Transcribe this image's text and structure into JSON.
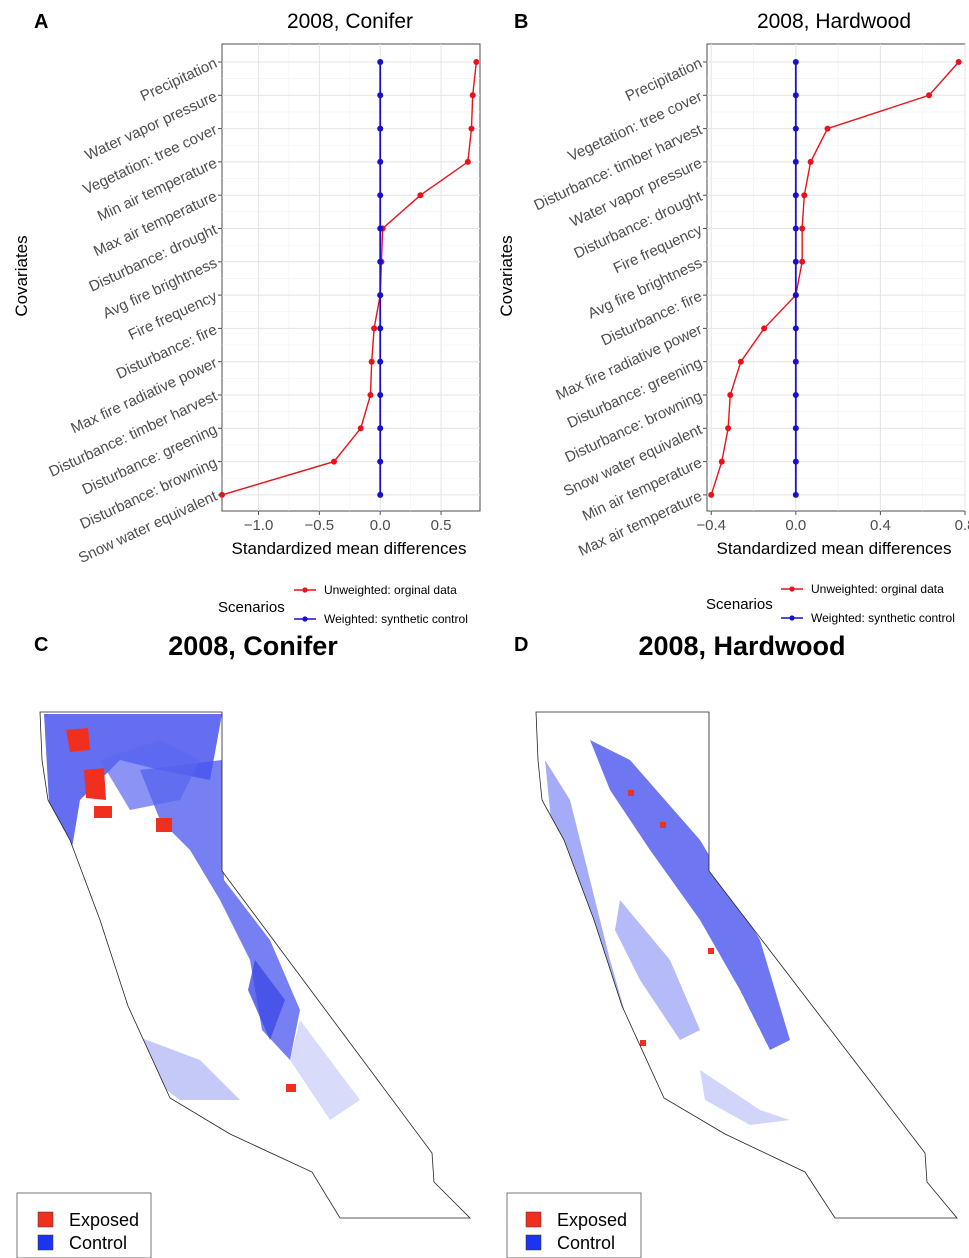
{
  "chart_data": [
    {
      "panel": "A",
      "type": "line",
      "title": "2008, Conifer",
      "xlabel": "Standardized mean differences",
      "ylabel": "Covariates",
      "xlim": [
        -1.3,
        0.82
      ],
      "xticks": [
        -1.0,
        -0.5,
        0.0,
        0.5
      ],
      "xtick_labels": [
        "−1.0",
        "−0.5",
        "0.0",
        "0.5"
      ],
      "grid": true,
      "legend_title": "Scenarios",
      "legend_position": "bottom-right",
      "categories": [
        "Precipitation",
        "Water vapor pressure",
        "Vegetation: tree cover",
        "Min air temperature",
        "Max air temperature",
        "Disturbance: drought",
        "Avg fire brightness",
        "Fire frequency",
        "Disturbance: fire",
        "Max fire radiative power",
        "Disturbance: timber harvest",
        "Disturbance: greening",
        "Disturbance: browning",
        "Snow water equivalent"
      ],
      "series": [
        {
          "name": "Unweighted: orginal data",
          "color": "#e8131a",
          "values": [
            0.79,
            0.76,
            0.75,
            0.72,
            0.33,
            0.02,
            0.01,
            0.0,
            -0.05,
            -0.07,
            -0.08,
            -0.16,
            -0.38,
            -1.3
          ]
        },
        {
          "name": "Weighted: synthetic control",
          "color": "#1a0fcc",
          "values": [
            0.0,
            0.0,
            0.0,
            0.0,
            0.0,
            0.0,
            0.0,
            0.0,
            0.0,
            0.0,
            0.0,
            0.0,
            0.0,
            0.0
          ]
        }
      ]
    },
    {
      "panel": "B",
      "type": "line",
      "title": "2008, Hardwood",
      "xlabel": "Standardized mean differences",
      "ylabel": "Covariates",
      "xlim": [
        -0.42,
        0.8
      ],
      "xticks": [
        -0.4,
        0.0,
        0.4,
        0.8
      ],
      "xtick_labels": [
        "−0.4",
        "0.0",
        "0.4",
        "0.8"
      ],
      "grid": true,
      "legend_title": "Scenarios",
      "legend_position": "bottom-right",
      "categories": [
        "Precipitation",
        "Vegetation: tree cover",
        "Disturbance: timber harvest",
        "Water vapor pressure",
        "Disturbance: drought",
        "Fire frequency",
        "Avg fire brightness",
        "Disturbance: fire",
        "Max fire radiative power",
        "Disturbance: greening",
        "Disturbance: browning",
        "Snow water equivalent",
        "Min air temperature",
        "Max air temperature"
      ],
      "series": [
        {
          "name": "Unweighted: orginal data",
          "color": "#e8131a",
          "values": [
            0.77,
            0.63,
            0.15,
            0.07,
            0.04,
            0.03,
            0.03,
            0.0,
            -0.15,
            -0.26,
            -0.31,
            -0.32,
            -0.35,
            -0.4
          ]
        },
        {
          "name": "Weighted: synthetic control",
          "color": "#1a0fcc",
          "values": [
            0.0,
            0.0,
            0.0,
            0.0,
            0.0,
            0.0,
            0.0,
            0.0,
            0.0,
            0.0,
            0.0,
            0.0,
            0.0,
            0.0
          ]
        }
      ]
    }
  ],
  "maps": [
    {
      "panel": "C",
      "title": "2008, Conifer",
      "legend": [
        {
          "label": "Exposed",
          "color": "#f0301e"
        },
        {
          "label": "Control",
          "color": "#1c34f2"
        }
      ]
    },
    {
      "panel": "D",
      "title": "2008, Hardwood",
      "legend": [
        {
          "label": "Exposed",
          "color": "#f0301e"
        },
        {
          "label": "Control",
          "color": "#1c34f2"
        }
      ]
    }
  ],
  "colors": {
    "unweighted": "#e8131a",
    "weighted": "#1a0fcc",
    "exposed": "#f0301e",
    "control": "#1c34f2"
  }
}
